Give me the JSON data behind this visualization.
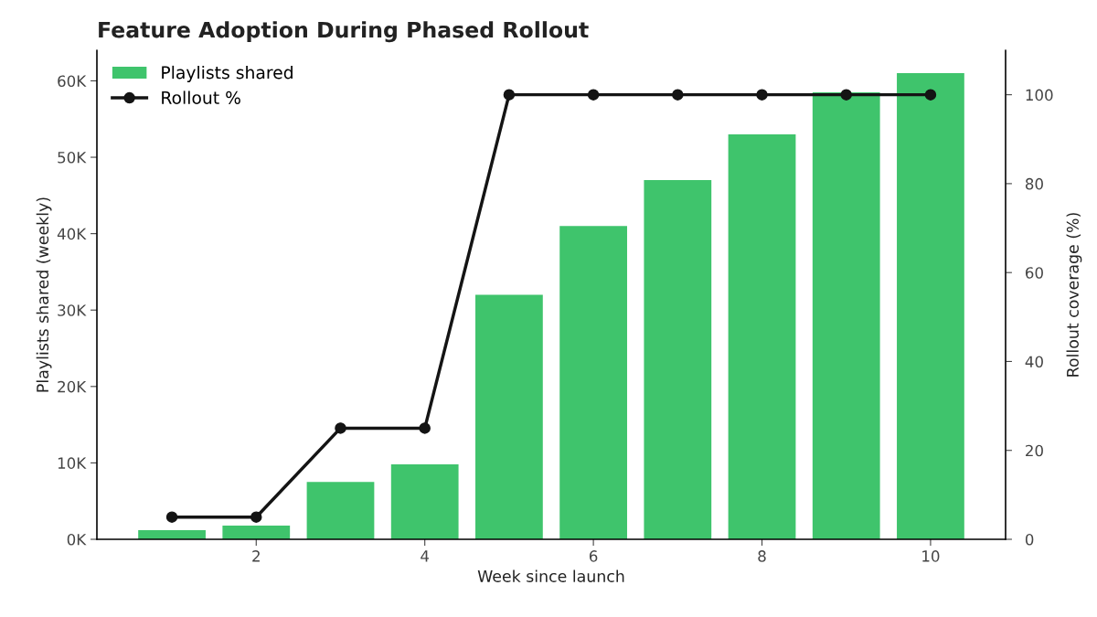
{
  "chart_data": {
    "type": "bar",
    "title": "Feature Adoption During Phased Rollout",
    "xlabel": "Week since launch",
    "ylabel": "Playlists shared (weekly)",
    "y2label": "Rollout coverage (%)",
    "x": [
      1,
      2,
      3,
      4,
      5,
      6,
      7,
      8,
      9,
      10
    ],
    "series": [
      {
        "name": "Playlists shared",
        "color": "#3fc46c",
        "values": [
          1200,
          1800,
          7500,
          9800,
          32000,
          41000,
          47000,
          53000,
          58500,
          61000
        ]
      },
      {
        "name": "Rollout %",
        "type": "line",
        "axis": "y2",
        "color": "#141414",
        "marker": "circle",
        "values": [
          5,
          5,
          25,
          25,
          100,
          100,
          100,
          100,
          100,
          100
        ]
      }
    ],
    "xlim": [
      0.11,
      10.89
    ],
    "xticks": [
      2,
      4,
      6,
      8,
      10
    ],
    "ylim": [
      0,
      64000
    ],
    "yticks": [
      {
        "value": 0,
        "label": "0K"
      },
      {
        "value": 10000,
        "label": "10K"
      },
      {
        "value": 20000,
        "label": "20K"
      },
      {
        "value": 30000,
        "label": "30K"
      },
      {
        "value": 40000,
        "label": "40K"
      },
      {
        "value": 50000,
        "label": "50K"
      },
      {
        "value": 60000,
        "label": "60K"
      }
    ],
    "y2lim": [
      0,
      110
    ],
    "y2ticks": [
      0,
      20,
      40,
      60,
      80,
      100
    ],
    "grid": false,
    "legend": "top left"
  }
}
